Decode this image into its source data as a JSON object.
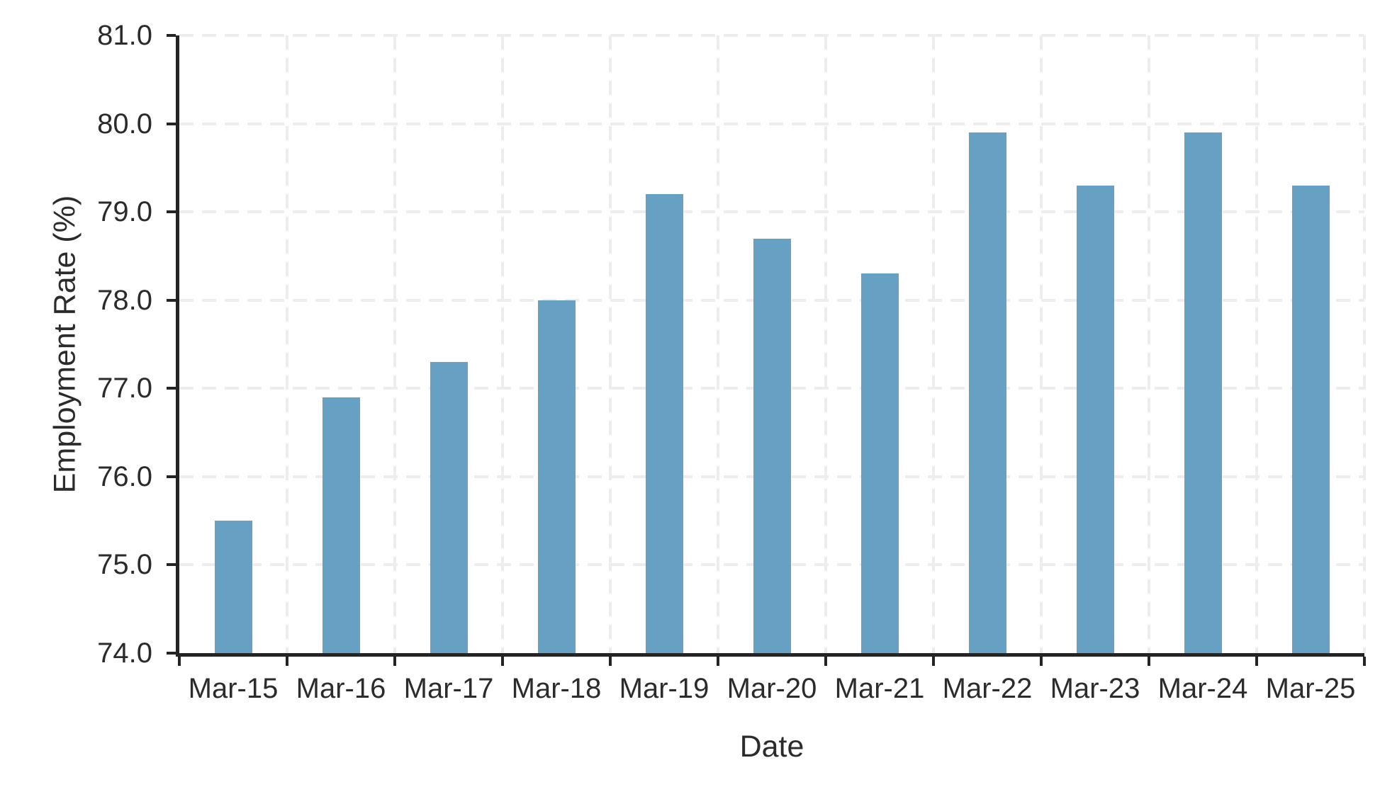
{
  "chart_data": {
    "type": "bar",
    "categories": [
      "Mar-15",
      "Mar-16",
      "Mar-17",
      "Mar-18",
      "Mar-19",
      "Mar-20",
      "Mar-21",
      "Mar-22",
      "Mar-23",
      "Mar-24",
      "Mar-25"
    ],
    "values": [
      75.5,
      76.9,
      77.3,
      78.0,
      79.2,
      78.7,
      78.3,
      79.9,
      79.3,
      79.9,
      79.3
    ],
    "xlabel": "Date",
    "ylabel": "Employment Rate (%)",
    "ylim": [
      74.0,
      81.0
    ],
    "ytick_step": 1.0,
    "ytick_decimals": 1,
    "legend": "none",
    "grid": "dashed, horizontal at each y tick and vertical at category boundaries",
    "colors": {
      "bar": "#66A0C2",
      "axis": "#242424",
      "grid": "#EDEDED",
      "text": "#2B2B2B",
      "background": "#FFFFFF"
    }
  }
}
